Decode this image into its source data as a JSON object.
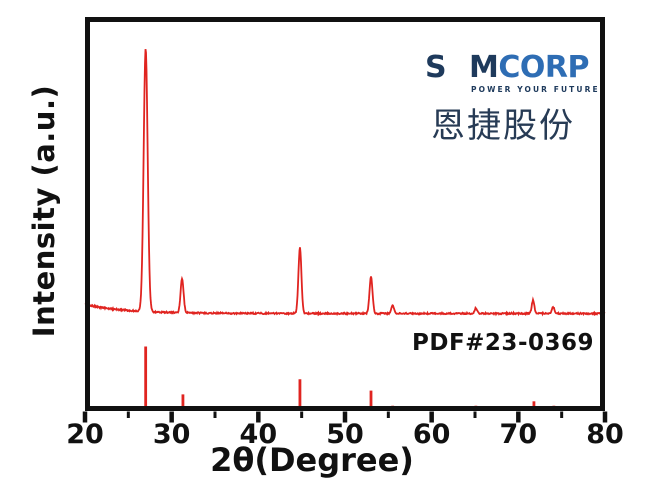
{
  "figure": {
    "y_axis_label": "Intensity (a.u.)",
    "x_axis_label": "2θ(Degree)",
    "reference_label": "PDF#23-0369"
  },
  "logo": {
    "brand_prefix": "S",
    "brand_m": "M",
    "brand_suffix": "CORP",
    "brand_full_name": "SEMCORP",
    "tagline": "POWER YOUR FUTURE",
    "chinese_name": "恩捷股份",
    "colors": {
      "navy": "#1e3a5c",
      "corp_blue": "#2e6db4",
      "light_bar": "#8fc0d8",
      "dark_bar": "#5d86a5",
      "chinese_navy": "#273b55"
    }
  },
  "chart_data": {
    "type": "line",
    "title": "",
    "xlabel": "2θ(Degree)",
    "ylabel": "Intensity (a.u.)",
    "x_range": [
      20,
      80
    ],
    "x_ticks": [
      20,
      30,
      40,
      50,
      60,
      70,
      80
    ],
    "x_minor_ticks": [
      25,
      35,
      45,
      55,
      65,
      75
    ],
    "grid": false,
    "legend": "none",
    "line_color": "#e02420",
    "axis_color": "#111111",
    "series": [
      {
        "name": "sample XRD pattern",
        "type": "line",
        "peaks": [
          {
            "two_theta": 27.0,
            "rel_intensity": 100
          },
          {
            "two_theta": 31.2,
            "rel_intensity": 13
          },
          {
            "two_theta": 44.8,
            "rel_intensity": 25
          },
          {
            "two_theta": 53.0,
            "rel_intensity": 14
          },
          {
            "two_theta": 55.5,
            "rel_intensity": 3
          },
          {
            "two_theta": 65.1,
            "rel_intensity": 2
          },
          {
            "two_theta": 71.7,
            "rel_intensity": 5
          },
          {
            "two_theta": 74.0,
            "rel_intensity": 2.5
          }
        ]
      },
      {
        "name": "PDF#23-0369 reference sticks",
        "type": "sticks",
        "peaks": [
          {
            "two_theta": 27.0,
            "rel_intensity": 100
          },
          {
            "two_theta": 31.3,
            "rel_intensity": 24
          },
          {
            "two_theta": 44.8,
            "rel_intensity": 48
          },
          {
            "two_theta": 53.0,
            "rel_intensity": 30
          },
          {
            "two_theta": 55.5,
            "rel_intensity": 6
          },
          {
            "two_theta": 65.1,
            "rel_intensity": 6
          },
          {
            "two_theta": 71.8,
            "rel_intensity": 13
          },
          {
            "two_theta": 74.1,
            "rel_intensity": 6
          }
        ]
      }
    ]
  }
}
